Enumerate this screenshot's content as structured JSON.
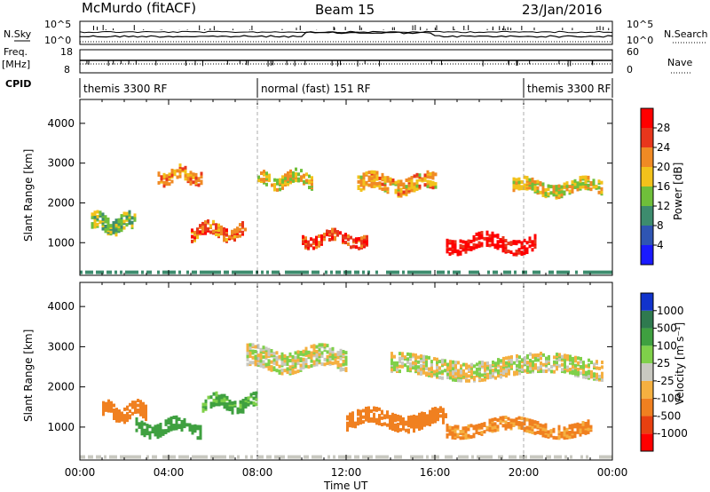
{
  "header": {
    "station": "McMurdo (fitACF)",
    "beam": "Beam 15",
    "date": "23/Jan/2016"
  },
  "top_panels": {
    "nsky_label": "N.Sky",
    "nsearch_label": "N.Search",
    "nsky_ticks": [
      "10^5",
      "10^0"
    ],
    "nsearch_ticks": [
      "10^5",
      "10^0"
    ],
    "freq_label_1": "Freq.",
    "freq_label_2": "[MHz]",
    "freq_ticks": [
      "18",
      "8"
    ],
    "nave_label": "Nave",
    "nave_ticks": [
      "60",
      "0"
    ],
    "cpid_label": "CPID",
    "cpid_segments": [
      {
        "label": "themis 3300 RF",
        "start_hour": 0,
        "end_hour": 8
      },
      {
        "label": "normal (fast) 151 RF",
        "start_hour": 8,
        "end_hour": 20
      },
      {
        "label": "themis 3300 RF",
        "start_hour": 20,
        "end_hour": 24
      }
    ]
  },
  "chart_data": [
    {
      "type": "heatmap",
      "title": "Power",
      "ylabel": "Slant Range [km]",
      "xlabel": "",
      "ylim": [
        180,
        4600
      ],
      "xlim": [
        0,
        24
      ],
      "yticks": [
        1000,
        2000,
        3000,
        4000
      ],
      "colorbar": {
        "label": "Power [dB]",
        "ticks": [
          "4",
          "8",
          "12",
          "16",
          "20",
          "24",
          "28"
        ],
        "colors": [
          "#1a1aff",
          "#2f55b3",
          "#3d8c6e",
          "#6fbf3a",
          "#f2c21b",
          "#f08a24",
          "#e8361c",
          "#ff0000"
        ]
      },
      "features": [
        {
          "start_hour": 0.5,
          "end_hour": 2.5,
          "range_center_km": 1500,
          "range_width_km": 400,
          "level": 14
        },
        {
          "start_hour": 3.5,
          "end_hour": 5.5,
          "range_center_km": 2700,
          "range_width_km": 300,
          "level": 22
        },
        {
          "start_hour": 5.0,
          "end_hour": 7.5,
          "range_center_km": 1300,
          "range_width_km": 300,
          "level": 24
        },
        {
          "start_hour": 8.0,
          "end_hour": 10.5,
          "range_center_km": 2600,
          "range_width_km": 300,
          "level": 18
        },
        {
          "start_hour": 10.0,
          "end_hour": 13.0,
          "range_center_km": 1100,
          "range_width_km": 250,
          "level": 26
        },
        {
          "start_hour": 12.5,
          "end_hour": 16.0,
          "range_center_km": 2500,
          "range_width_km": 400,
          "level": 20
        },
        {
          "start_hour": 16.5,
          "end_hour": 20.5,
          "range_center_km": 1000,
          "range_width_km": 350,
          "level": 30
        },
        {
          "start_hour": 19.5,
          "end_hour": 23.5,
          "range_center_km": 2400,
          "range_width_km": 300,
          "level": 18
        }
      ]
    },
    {
      "type": "heatmap",
      "title": "Velocity",
      "ylabel": "Slant Range [km]",
      "xlabel": "Time UT",
      "ylim": [
        180,
        4600
      ],
      "xlim": [
        0,
        24
      ],
      "yticks": [
        1000,
        2000,
        3000,
        4000
      ],
      "xticks": [
        "00:00",
        "04:00",
        "08:00",
        "12:00",
        "16:00",
        "20:00",
        "00:00"
      ],
      "colorbar": {
        "label": "Velocity [m s⁻¹]",
        "ticks": [
          "1000",
          "500",
          "100",
          "25",
          "-25",
          "-100",
          "-500",
          "-1000"
        ],
        "colors": [
          "#1133cc",
          "#2f7a4f",
          "#3fa040",
          "#7fd04a",
          "#c8c8c0",
          "#f5b040",
          "#f08020",
          "#e84010",
          "#ff0000"
        ]
      },
      "features": [
        {
          "start_hour": 1.0,
          "end_hour": 3.0,
          "range_center_km": 1400,
          "range_width_km": 350,
          "velocity": -200
        },
        {
          "start_hour": 2.5,
          "end_hour": 5.5,
          "range_center_km": 1000,
          "range_width_km": 300,
          "velocity": 300
        },
        {
          "start_hour": 5.5,
          "end_hour": 8.0,
          "range_center_km": 1600,
          "range_width_km": 300,
          "velocity": 150
        },
        {
          "start_hour": 7.5,
          "end_hour": 12.0,
          "range_center_km": 2700,
          "range_width_km": 500,
          "velocity": 0
        },
        {
          "start_hour": 12.0,
          "end_hour": 16.5,
          "range_center_km": 1200,
          "range_width_km": 400,
          "velocity": -350
        },
        {
          "start_hour": 16.5,
          "end_hour": 23.0,
          "range_center_km": 1000,
          "range_width_km": 300,
          "velocity": -150
        },
        {
          "start_hour": 14.0,
          "end_hour": 23.5,
          "range_center_km": 2500,
          "range_width_km": 450,
          "velocity": 0
        }
      ]
    }
  ]
}
